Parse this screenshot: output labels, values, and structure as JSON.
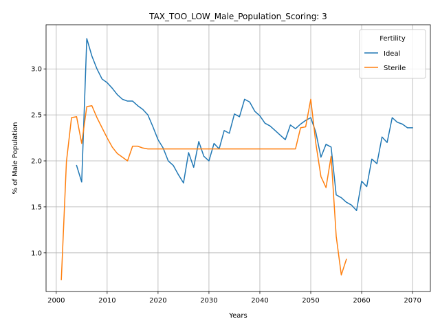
{
  "chart_data": {
    "type": "line",
    "title": "TAX_TOO_LOW_Male_Population_Scoring: 3",
    "xlabel": "Years",
    "ylabel": "% of Male Population",
    "xlim": [
      1998,
      2073.5
    ],
    "ylim": [
      0.58,
      3.48
    ],
    "xticks": [
      2000,
      2010,
      2020,
      2030,
      2040,
      2050,
      2060,
      2070
    ],
    "yticks": [
      1.0,
      1.5,
      2.0,
      2.5,
      3.0
    ],
    "xtick_labels": [
      "2000",
      "2010",
      "2020",
      "2030",
      "2040",
      "2050",
      "2060",
      "2070"
    ],
    "ytick_labels": [
      "1.0",
      "1.5",
      "2.0",
      "2.5",
      "3.0"
    ],
    "grid": true,
    "legend": {
      "title": "Fertility",
      "placement": "top-right"
    },
    "series": [
      {
        "name": "Ideal",
        "color": "#1f77b4",
        "x": [
          2004,
          2005,
          2006,
          2007,
          2008,
          2009,
          2010,
          2011,
          2012,
          2013,
          2014,
          2015,
          2016,
          2017,
          2018,
          2019,
          2020,
          2021,
          2022,
          2023,
          2024,
          2025,
          2026,
          2027,
          2028,
          2029,
          2030,
          2031,
          2032,
          2033,
          2034,
          2035,
          2036,
          2037,
          2038,
          2039,
          2040,
          2041,
          2042,
          2043,
          2044,
          2045,
          2046,
          2047,
          2048,
          2049,
          2050,
          2051,
          2052,
          2053,
          2054,
          2055,
          2056,
          2057,
          2058,
          2059,
          2060,
          2061,
          2062,
          2063,
          2064,
          2065,
          2066,
          2067,
          2068,
          2069,
          2070
        ],
        "values": [
          1.95,
          1.77,
          3.33,
          3.14,
          3.0,
          2.89,
          2.85,
          2.79,
          2.72,
          2.67,
          2.65,
          2.65,
          2.6,
          2.56,
          2.5,
          2.37,
          2.23,
          2.14,
          2.0,
          1.95,
          1.85,
          1.76,
          2.09,
          1.93,
          2.21,
          2.05,
          2.0,
          2.19,
          2.13,
          2.33,
          2.3,
          2.51,
          2.48,
          2.67,
          2.64,
          2.54,
          2.49,
          2.41,
          2.38,
          2.33,
          2.28,
          2.23,
          2.39,
          2.35,
          2.4,
          2.44,
          2.47,
          2.31,
          2.04,
          2.18,
          2.15,
          1.63,
          1.6,
          1.55,
          1.52,
          1.46,
          1.78,
          1.72,
          2.02,
          1.97,
          2.26,
          2.2,
          2.47,
          2.42,
          2.4,
          2.36,
          2.36
        ]
      },
      {
        "name": "Sterile",
        "color": "#ff7f0e",
        "x": [
          2001,
          2002,
          2003,
          2004,
          2005,
          2006,
          2007,
          2008,
          2009,
          2010,
          2011,
          2012,
          2013,
          2014,
          2015,
          2016,
          2017,
          2018,
          2019,
          2020,
          2021,
          2022,
          2023,
          2024,
          2025,
          2026,
          2027,
          2028,
          2029,
          2030,
          2031,
          2032,
          2033,
          2034,
          2035,
          2036,
          2037,
          2038,
          2039,
          2040,
          2041,
          2042,
          2043,
          2044,
          2045,
          2046,
          2047,
          2048,
          2049,
          2050,
          2051,
          2052,
          2053,
          2054,
          2055,
          2056,
          2057
        ],
        "values": [
          0.71,
          1.99,
          2.47,
          2.48,
          2.19,
          2.59,
          2.6,
          2.47,
          2.36,
          2.25,
          2.15,
          2.08,
          2.04,
          2.0,
          2.16,
          2.16,
          2.14,
          2.13,
          2.13,
          2.13,
          2.13,
          2.13,
          2.13,
          2.13,
          2.13,
          2.13,
          2.13,
          2.13,
          2.13,
          2.13,
          2.13,
          2.13,
          2.13,
          2.13,
          2.13,
          2.13,
          2.13,
          2.13,
          2.13,
          2.13,
          2.13,
          2.13,
          2.13,
          2.13,
          2.13,
          2.13,
          2.13,
          2.36,
          2.37,
          2.67,
          2.19,
          1.83,
          1.71,
          2.05,
          1.18,
          0.76,
          0.93
        ]
      }
    ]
  }
}
